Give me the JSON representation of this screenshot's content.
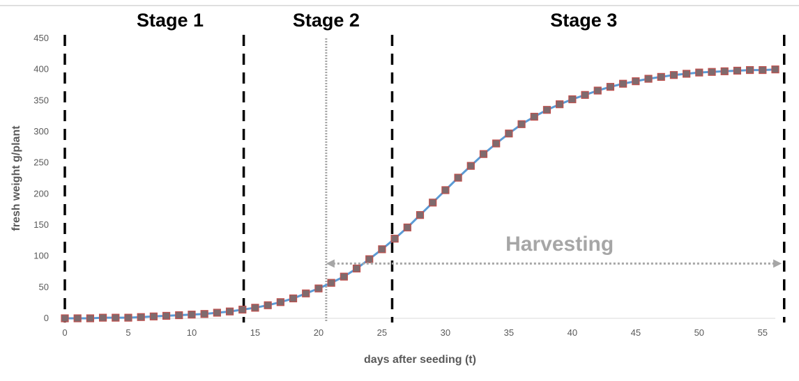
{
  "chart_data": {
    "type": "line",
    "xlabel": "days after seeding (t)",
    "ylabel": "fresh weight g/plant",
    "xlim": [
      0,
      56
    ],
    "ylim": [
      0,
      450
    ],
    "x_ticks": [
      0,
      5,
      10,
      15,
      20,
      25,
      30,
      35,
      40,
      45,
      50,
      55
    ],
    "y_ticks": [
      0,
      50,
      100,
      150,
      200,
      250,
      300,
      350,
      400,
      450
    ],
    "grid": false,
    "legend": "none",
    "series": [
      {
        "x": [
          0,
          1,
          2,
          3,
          4,
          5,
          6,
          7,
          8,
          9,
          10,
          11,
          12,
          13,
          14,
          15,
          16,
          17,
          18,
          19,
          20,
          21,
          22,
          23,
          24,
          25,
          26,
          27,
          28,
          29,
          30,
          31,
          32,
          33,
          34,
          35,
          36,
          37,
          38,
          39,
          40,
          41,
          42,
          43,
          44,
          45,
          46,
          47,
          48,
          49,
          50,
          51,
          52,
          53,
          54,
          55,
          56
        ],
        "values": [
          0,
          0,
          0,
          1,
          1,
          1,
          2,
          3,
          4,
          5,
          6,
          7,
          9,
          11,
          14,
          17,
          21,
          26,
          32,
          40,
          48,
          57,
          67,
          80,
          95,
          111,
          128,
          146,
          166,
          186,
          206,
          226,
          245,
          264,
          281,
          297,
          312,
          324,
          335,
          344,
          352,
          359,
          366,
          372,
          377,
          381,
          385,
          388,
          391,
          393,
          395,
          396,
          397,
          398,
          399,
          399,
          400
        ],
        "line_color": "#5b9bd5",
        "marker_color": "#7f6a6d",
        "marker_edge": "#c0504d"
      }
    ],
    "stages": [
      {
        "label": "Stage 1",
        "x": 8.3
      },
      {
        "label": "Stage 2",
        "x": 20.6
      },
      {
        "label": "Stage 3",
        "x": 40.9
      }
    ],
    "stage_boundaries": [
      0,
      14.1,
      25.8,
      56.7
    ],
    "harvest_start_line": 20.6,
    "harvest": {
      "label": "Harvesting",
      "x_start": 20.6,
      "x_end": 56.5,
      "y": 88,
      "label_x": 39,
      "label_y": 120
    }
  }
}
